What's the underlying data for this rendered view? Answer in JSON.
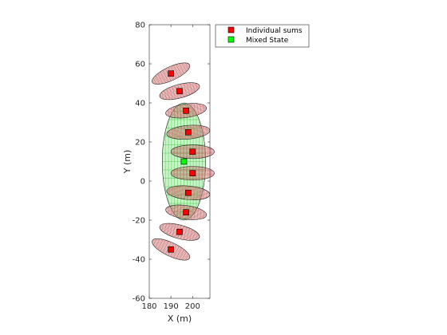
{
  "chart_data": {
    "type": "scatter",
    "title": "",
    "xlabel": "X (m)",
    "ylabel": "Y (m)",
    "xlim": [
      180,
      208
    ],
    "ylim": [
      -60,
      80
    ],
    "xticks": [
      180,
      190,
      200
    ],
    "yticks": [
      -60,
      -40,
      -20,
      0,
      20,
      40,
      60,
      80
    ],
    "grid": false,
    "legend_placement": "outside-top-right",
    "series": [
      {
        "name": "Individual sums",
        "marker": "square",
        "color": "#ff0000",
        "ellipse_color": "#c86464",
        "points": [
          {
            "x": 190,
            "y": 55
          },
          {
            "x": 194,
            "y": 46
          },
          {
            "x": 197,
            "y": 36
          },
          {
            "x": 198,
            "y": 25
          },
          {
            "x": 200,
            "y": 15
          },
          {
            "x": 200,
            "y": 4
          },
          {
            "x": 198,
            "y": -6
          },
          {
            "x": 197,
            "y": -16
          },
          {
            "x": 194,
            "y": -26
          },
          {
            "x": 190,
            "y": -35
          }
        ],
        "ellipses": [
          {
            "cx": 190,
            "cy": 55,
            "rx": 9.5,
            "ry": 3.5,
            "angle": 25
          },
          {
            "cx": 194,
            "cy": 46,
            "rx": 9.5,
            "ry": 3.5,
            "angle": 15
          },
          {
            "cx": 197,
            "cy": 36,
            "rx": 9.5,
            "ry": 3.5,
            "angle": 8
          },
          {
            "cx": 198,
            "cy": 25,
            "rx": 10,
            "ry": 3.5,
            "angle": 5
          },
          {
            "cx": 200,
            "cy": 15,
            "rx": 10,
            "ry": 3.5,
            "angle": 0
          },
          {
            "cx": 200,
            "cy": 4,
            "rx": 10,
            "ry": 3.5,
            "angle": 0
          },
          {
            "cx": 198,
            "cy": -6,
            "rx": 10,
            "ry": 3.5,
            "angle": -5
          },
          {
            "cx": 197,
            "cy": -16,
            "rx": 9.5,
            "ry": 3.5,
            "angle": -8
          },
          {
            "cx": 194,
            "cy": -26,
            "rx": 9.5,
            "ry": 3.5,
            "angle": -15
          },
          {
            "cx": 190,
            "cy": -35,
            "rx": 9.5,
            "ry": 3.5,
            "angle": -25
          }
        ]
      },
      {
        "name": "Mixed State",
        "marker": "square",
        "color": "#00ff00",
        "ellipse_color": "#3cbe3c",
        "ellipse_fill": "#c8f5c8",
        "points": [
          {
            "x": 196,
            "y": 10
          }
        ],
        "ellipses": [
          {
            "cx": 196,
            "cy": 10,
            "rx": 10,
            "ry": 30,
            "angle": 0
          }
        ]
      }
    ]
  }
}
